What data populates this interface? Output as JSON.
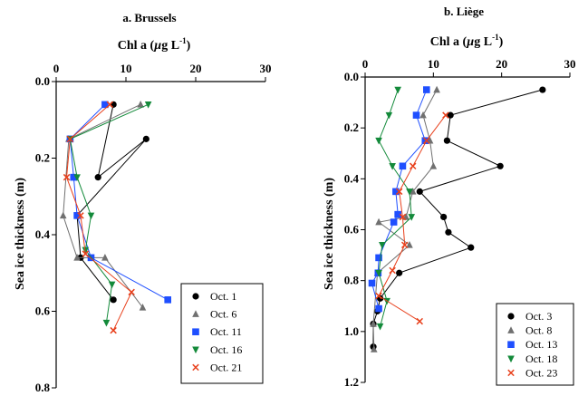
{
  "chart_data": [
    {
      "type": "line",
      "title": "a. Brussels",
      "xlabel_main": "Chl a (",
      "xlabel_mu": "µ",
      "xlabel_unit": "g L",
      "xlabel_sup": "-1",
      "xlabel_end": ")",
      "ylabel": "Sea ice thickness (m)",
      "xlim": [
        0,
        30
      ],
      "ylim": [
        0.8,
        0.0
      ],
      "x_axis_position": "top",
      "y_inverted": true,
      "xticks": [
        "0",
        "10",
        "20",
        "30"
      ],
      "yticks": [
        "0.0",
        "0.2",
        "0.4",
        "0.6",
        "0.8"
      ],
      "legend_position": "bottom-right",
      "series": [
        {
          "name": "Oct. 1",
          "marker": "circle",
          "color": "#000000",
          "x": [
            8.2,
            6.0,
            12.9,
            3.0,
            3.5,
            8.2
          ],
          "y": [
            0.06,
            0.25,
            0.15,
            0.35,
            0.46,
            0.57
          ]
        },
        {
          "name": "Oct. 6",
          "marker": "triangle-up",
          "color": "#707070",
          "x": [
            12.1,
            1.8,
            1.0,
            3.0,
            7.0,
            12.4
          ],
          "y": [
            0.06,
            0.15,
            0.35,
            0.46,
            0.46,
            0.59
          ]
        },
        {
          "name": "Oct. 11",
          "marker": "square",
          "color": "#1f4fff",
          "x": [
            7.0,
            2.0,
            2.5,
            3.0,
            5.0,
            16.0
          ],
          "y": [
            0.06,
            0.15,
            0.25,
            0.35,
            0.46,
            0.57
          ]
        },
        {
          "name": "Oct. 16",
          "marker": "triangle-down",
          "color": "#138a3a",
          "x": [
            13.2,
            2.0,
            3.0,
            5.0,
            4.2,
            8.0,
            7.2
          ],
          "y": [
            0.06,
            0.15,
            0.25,
            0.35,
            0.44,
            0.53,
            0.63
          ]
        },
        {
          "name": "Oct. 21",
          "marker": "x",
          "color": "#e8401c",
          "x": [
            7.7,
            2.0,
            1.5,
            3.5,
            4.2,
            10.8,
            8.2
          ],
          "y": [
            0.06,
            0.15,
            0.25,
            0.35,
            0.45,
            0.55,
            0.65
          ]
        }
      ]
    },
    {
      "type": "line",
      "title": "b. Liège",
      "xlabel_main": "Chl a (",
      "xlabel_mu": "µ",
      "xlabel_unit": "g L",
      "xlabel_sup": "-1",
      "xlabel_end": ")",
      "ylabel": "Sea ice thickness (m)",
      "xlim": [
        0,
        30
      ],
      "ylim": [
        1.2,
        0.0
      ],
      "x_axis_position": "top",
      "y_inverted": true,
      "xticks": [
        "0",
        "10",
        "20",
        "30"
      ],
      "yticks": [
        "0.0",
        "0.2",
        "0.4",
        "0.6",
        "0.8",
        "1.0",
        "1.2"
      ],
      "legend_position": "bottom-right",
      "series": [
        {
          "name": "Oct. 3",
          "marker": "circle",
          "color": "#000000",
          "x": [
            26.0,
            12.5,
            12.0,
            19.8,
            8.0,
            11.5,
            12.2,
            15.5,
            5.0,
            2.2,
            1.8,
            1.2,
            1.2
          ],
          "y": [
            0.05,
            0.15,
            0.25,
            0.35,
            0.45,
            0.55,
            0.61,
            0.67,
            0.77,
            0.87,
            0.92,
            0.97,
            1.06
          ]
        },
        {
          "name": "Oct. 8",
          "marker": "triangle-up",
          "color": "#707070",
          "x": [
            10.5,
            8.5,
            9.5,
            10.0,
            7.0,
            6.0,
            2.0,
            6.5,
            1.8,
            1.2,
            1.3
          ],
          "y": [
            0.05,
            0.15,
            0.25,
            0.35,
            0.45,
            0.55,
            0.57,
            0.66,
            0.77,
            0.97,
            1.07
          ]
        },
        {
          "name": "Oct. 13",
          "marker": "square",
          "color": "#1f4fff",
          "x": [
            9.0,
            7.5,
            8.8,
            5.5,
            4.5,
            4.8,
            4.2,
            2.0,
            1.9,
            1.0,
            2.0
          ],
          "y": [
            0.05,
            0.15,
            0.25,
            0.35,
            0.45,
            0.54,
            0.57,
            0.71,
            0.77,
            0.81,
            0.91
          ]
        },
        {
          "name": "Oct. 18",
          "marker": "triangle-down",
          "color": "#138a3a",
          "x": [
            4.8,
            3.5,
            2.0,
            4.0,
            6.5,
            6.8,
            2.5,
            2.0,
            3.2,
            2.2
          ],
          "y": [
            0.05,
            0.15,
            0.25,
            0.35,
            0.45,
            0.55,
            0.66,
            0.77,
            0.88,
            0.98
          ]
        },
        {
          "name": "Oct. 23",
          "marker": "x",
          "color": "#e8401c",
          "x": [
            11.8,
            9.0,
            7.0,
            5.0,
            5.5,
            5.8,
            4.0,
            2.0,
            8.0
          ],
          "y": [
            0.15,
            0.25,
            0.35,
            0.45,
            0.55,
            0.66,
            0.76,
            0.86,
            0.96
          ]
        }
      ]
    }
  ]
}
